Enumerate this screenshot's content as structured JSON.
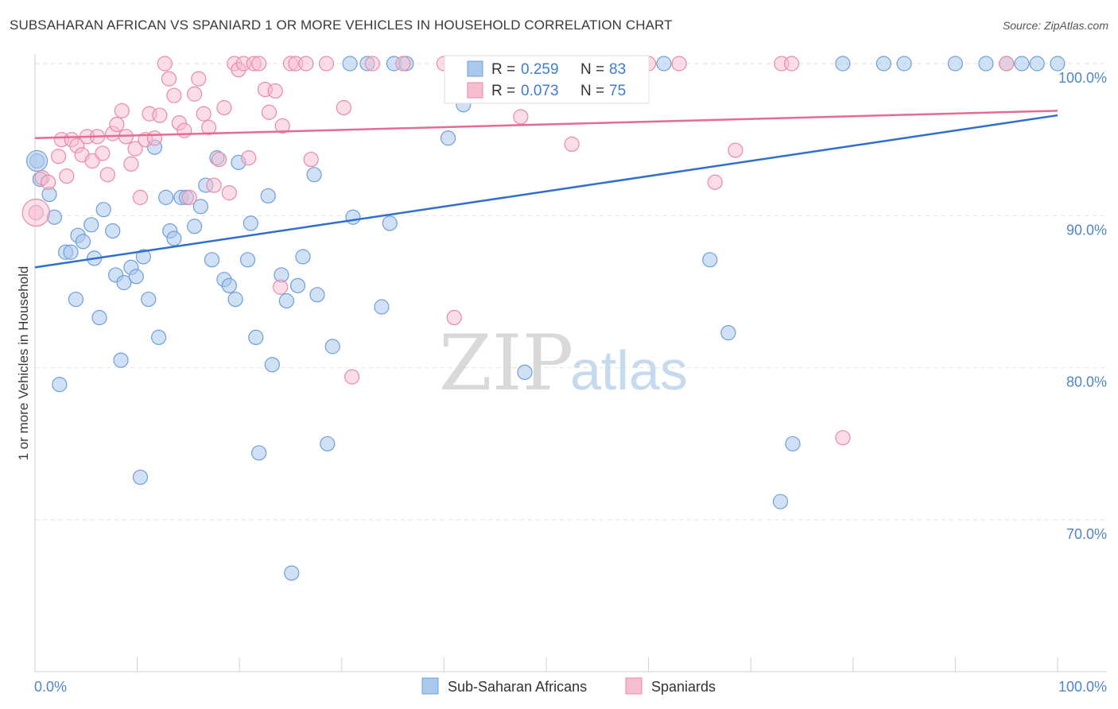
{
  "header": {
    "title": "SUBSAHARAN AFRICAN VS SPANIARD 1 OR MORE VEHICLES IN HOUSEHOLD CORRELATION CHART",
    "source": "Source: ZipAtlas.com"
  },
  "watermark": {
    "zip": "ZIP",
    "atlas": "atlas"
  },
  "colors": {
    "blue_fill": "#aac8ec",
    "blue_stroke": "#6f9fd8",
    "blue_line": "#2f6fcf",
    "pink_fill": "#f6bcd0",
    "pink_stroke": "#e88aab",
    "pink_line": "#e56b93",
    "grid": "#e2e2e2",
    "axis_text": "#4f86c6"
  },
  "legend": {
    "rows": [
      {
        "r_label": "R = ",
        "r_value": "0.259",
        "n_label": "N = ",
        "n_value": "83"
      },
      {
        "r_label": "R = ",
        "r_value": "0.073",
        "n_label": "N = ",
        "n_value": "75"
      }
    ]
  },
  "chart_data": {
    "type": "scatter",
    "title": "SUBSAHARAN AFRICAN VS SPANIARD 1 OR MORE VEHICLES IN HOUSEHOLD CORRELATION CHART",
    "xlabel": "",
    "ylabel": "1 or more Vehicles in Household",
    "xlim": [
      0,
      100
    ],
    "ylim": [
      60,
      100
    ],
    "x_tick_labels": [
      "0.0%",
      "100.0%"
    ],
    "y_ticks": [
      {
        "value": 70,
        "label": "70.0%"
      },
      {
        "value": 80,
        "label": "80.0%"
      },
      {
        "value": 90,
        "label": "90.0%"
      },
      {
        "value": 100,
        "label": "100.0%"
      }
    ],
    "grid": true,
    "legend_position": "top-center",
    "series": [
      {
        "name": "Sub-Saharan Africans",
        "color": "#aac8ec",
        "trend": {
          "x": [
            0,
            100
          ],
          "y": [
            86.6,
            96.6
          ]
        },
        "points": [
          [
            0.2,
            93.6
          ],
          [
            0.5,
            92.4
          ],
          [
            1.4,
            91.4
          ],
          [
            1.9,
            89.9
          ],
          [
            2.4,
            78.9
          ],
          [
            3.0,
            87.6
          ],
          [
            3.5,
            87.6
          ],
          [
            4.0,
            84.5
          ],
          [
            4.2,
            88.7
          ],
          [
            4.7,
            88.3
          ],
          [
            5.5,
            89.4
          ],
          [
            5.8,
            87.2
          ],
          [
            6.3,
            83.3
          ],
          [
            6.7,
            90.4
          ],
          [
            7.6,
            89.0
          ],
          [
            7.9,
            86.1
          ],
          [
            8.4,
            80.5
          ],
          [
            8.7,
            85.6
          ],
          [
            9.4,
            86.6
          ],
          [
            9.9,
            86.0
          ],
          [
            10.3,
            72.8
          ],
          [
            10.6,
            87.3
          ],
          [
            11.1,
            84.5
          ],
          [
            11.7,
            94.5
          ],
          [
            12.1,
            82.0
          ],
          [
            12.8,
            91.2
          ],
          [
            13.2,
            89.0
          ],
          [
            13.6,
            88.5
          ],
          [
            14.3,
            91.2
          ],
          [
            14.8,
            91.2
          ],
          [
            15.6,
            89.3
          ],
          [
            16.2,
            90.6
          ],
          [
            16.7,
            92.0
          ],
          [
            17.3,
            87.1
          ],
          [
            17.8,
            93.8
          ],
          [
            18.5,
            85.8
          ],
          [
            19.0,
            85.4
          ],
          [
            19.6,
            84.5
          ],
          [
            19.9,
            93.5
          ],
          [
            20.8,
            87.1
          ],
          [
            21.1,
            89.5
          ],
          [
            21.6,
            82.0
          ],
          [
            21.9,
            74.4
          ],
          [
            22.8,
            91.3
          ],
          [
            23.2,
            80.2
          ],
          [
            24.1,
            86.1
          ],
          [
            24.6,
            84.4
          ],
          [
            25.1,
            66.5
          ],
          [
            25.7,
            85.4
          ],
          [
            26.2,
            87.3
          ],
          [
            27.3,
            92.7
          ],
          [
            27.6,
            84.8
          ],
          [
            28.6,
            75.0
          ],
          [
            29.1,
            81.4
          ],
          [
            30.8,
            100
          ],
          [
            31.1,
            89.9
          ],
          [
            32.5,
            100
          ],
          [
            33.9,
            84.0
          ],
          [
            34.7,
            89.5
          ],
          [
            35.1,
            100
          ],
          [
            36.3,
            100
          ],
          [
            40.4,
            95.1
          ],
          [
            41.9,
            97.3
          ],
          [
            47.4,
            100
          ],
          [
            47.9,
            79.7
          ],
          [
            51.0,
            100
          ],
          [
            55.1,
            100
          ],
          [
            56.2,
            100
          ],
          [
            59.2,
            100
          ],
          [
            61.5,
            100
          ],
          [
            66.0,
            87.1
          ],
          [
            67.8,
            82.3
          ],
          [
            72.9,
            71.2
          ],
          [
            74.1,
            75.0
          ],
          [
            79.0,
            100
          ],
          [
            83.0,
            100
          ],
          [
            85.0,
            100
          ],
          [
            90.0,
            100
          ],
          [
            93.0,
            100
          ],
          [
            95.0,
            100
          ],
          [
            96.5,
            100
          ],
          [
            98.0,
            100
          ],
          [
            100.0,
            100
          ]
        ]
      },
      {
        "name": "Spaniards",
        "color": "#f6bcd0",
        "trend": {
          "x": [
            0,
            100
          ],
          "y": [
            95.1,
            96.9
          ]
        },
        "points": [
          [
            0.1,
            90.2
          ],
          [
            0.7,
            92.5
          ],
          [
            1.3,
            92.2
          ],
          [
            2.3,
            93.9
          ],
          [
            2.6,
            95.0
          ],
          [
            3.1,
            92.6
          ],
          [
            3.6,
            95.0
          ],
          [
            4.1,
            94.6
          ],
          [
            4.6,
            94.0
          ],
          [
            5.1,
            95.2
          ],
          [
            5.6,
            93.6
          ],
          [
            6.1,
            95.2
          ],
          [
            6.6,
            94.1
          ],
          [
            7.1,
            92.7
          ],
          [
            7.6,
            95.4
          ],
          [
            8.0,
            96.0
          ],
          [
            8.5,
            96.9
          ],
          [
            8.9,
            95.2
          ],
          [
            9.4,
            93.4
          ],
          [
            9.8,
            94.4
          ],
          [
            10.3,
            91.2
          ],
          [
            10.8,
            95.0
          ],
          [
            11.2,
            96.7
          ],
          [
            11.7,
            95.1
          ],
          [
            12.2,
            96.6
          ],
          [
            12.7,
            100
          ],
          [
            13.1,
            99.0
          ],
          [
            13.6,
            97.9
          ],
          [
            14.1,
            96.1
          ],
          [
            14.6,
            95.6
          ],
          [
            15.1,
            91.2
          ],
          [
            15.6,
            98.0
          ],
          [
            16.0,
            99.0
          ],
          [
            16.5,
            96.7
          ],
          [
            17.0,
            95.8
          ],
          [
            17.5,
            92.0
          ],
          [
            18.0,
            93.7
          ],
          [
            18.5,
            97.1
          ],
          [
            19.0,
            91.5
          ],
          [
            19.5,
            100
          ],
          [
            19.9,
            99.6
          ],
          [
            20.4,
            100
          ],
          [
            20.9,
            93.8
          ],
          [
            21.4,
            100
          ],
          [
            21.9,
            100
          ],
          [
            22.5,
            98.3
          ],
          [
            22.9,
            96.8
          ],
          [
            23.5,
            98.2
          ],
          [
            24.0,
            85.3
          ],
          [
            24.2,
            95.9
          ],
          [
            25.0,
            100
          ],
          [
            25.5,
            100
          ],
          [
            26.5,
            100
          ],
          [
            27.0,
            93.7
          ],
          [
            28.5,
            100
          ],
          [
            30.2,
            97.1
          ],
          [
            31.0,
            79.4
          ],
          [
            33.0,
            100
          ],
          [
            36.0,
            100
          ],
          [
            40.0,
            100
          ],
          [
            41.0,
            83.3
          ],
          [
            44.0,
            100
          ],
          [
            47.0,
            100
          ],
          [
            47.5,
            96.5
          ],
          [
            52.5,
            94.7
          ],
          [
            56.0,
            100
          ],
          [
            58.0,
            100
          ],
          [
            60.0,
            100
          ],
          [
            63.0,
            100
          ],
          [
            66.5,
            92.2
          ],
          [
            68.5,
            94.3
          ],
          [
            73.0,
            100
          ],
          [
            74.0,
            100
          ],
          [
            79.0,
            75.4
          ],
          [
            95.0,
            100
          ]
        ]
      }
    ]
  },
  "bottom_legend": [
    {
      "label": "Sub-Saharan Africans"
    },
    {
      "label": "Spaniards"
    }
  ]
}
